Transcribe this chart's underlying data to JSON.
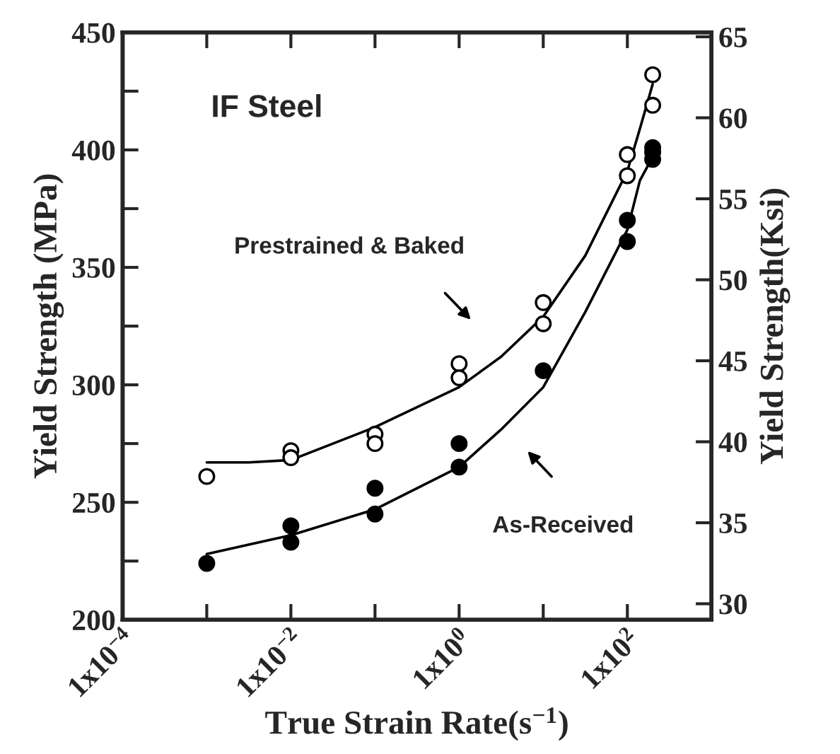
{
  "chart_data": {
    "type": "scatter",
    "xlabel": "True Strain Rate(s$^{−1}$)",
    "ylabel": "Yield Strength (MPa)",
    "y2label": "Yield Strength(Ksi)",
    "log": "x",
    "xlim": [
      0.0001,
      1000
    ],
    "xticks": [
      {
        "value": 0.0001,
        "label": "1x10$^{−4}$"
      },
      {
        "value": 0.001,
        "label": null
      },
      {
        "value": 0.01,
        "label": "1x10$^{−2}$"
      },
      {
        "value": 0.1,
        "label": null
      },
      {
        "value": 1,
        "label": "1x10$^{0}$"
      },
      {
        "value": 10,
        "label": null
      },
      {
        "value": 100,
        "label": "1x10$^{2}$"
      },
      {
        "value": 1000,
        "label": null
      }
    ],
    "ylim": [
      200,
      450
    ],
    "yticks": [
      200,
      {
        "value": 225,
        "label": null
      },
      250,
      {
        "value": 275,
        "label": null
      },
      300,
      {
        "value": 325,
        "label": null
      },
      350,
      {
        "value": 375,
        "label": null
      },
      400,
      {
        "value": 425,
        "label": null
      },
      450
    ],
    "y2lim": [
      29.01,
      65.27
    ],
    "y2ticks": [
      30,
      35,
      40,
      45,
      50,
      55,
      60,
      65
    ],
    "grid": false,
    "legend": false,
    "annotations": [
      "IF Steel",
      "Prestrained & Baked",
      "As-Received"
    ],
    "series": [
      {
        "color": "#ffffff",
        "marker": "circle",
        "x": [
          0.001,
          0.01,
          0.01,
          0.1,
          0.1,
          1,
          1,
          10,
          10,
          100,
          100,
          200,
          200
        ],
        "values": [
          261,
          272,
          269,
          279,
          275,
          309,
          303,
          335,
          326,
          398,
          389,
          432,
          419
        ]
      },
      {
        "color": "#000000",
        "marker": "circle",
        "x": [
          0.001,
          0.01,
          0.01,
          0.1,
          0.1,
          1,
          1,
          10,
          100,
          100,
          200,
          200,
          200
        ],
        "values": [
          224,
          240,
          233,
          256,
          245,
          275,
          265,
          306,
          370,
          361,
          401,
          399,
          396
        ]
      },
      {
        "type": "line",
        "color": "#000000",
        "marker": "none",
        "line_style": "solid",
        "x": [
          0.001,
          0.00316,
          0.01,
          0.1,
          1,
          3.16,
          10,
          31.6,
          100,
          141,
          200
        ],
        "values": [
          267,
          267,
          268,
          282,
          299,
          312,
          329,
          355,
          391,
          409,
          428
        ]
      },
      {
        "type": "line",
        "color": "#000000",
        "marker": "none",
        "line_style": "solid",
        "x": [
          0.001,
          0.01,
          0.1,
          1,
          3.16,
          10,
          31.6,
          100,
          141,
          200
        ],
        "values": [
          228,
          236,
          247,
          265,
          281,
          299,
          331,
          366,
          387,
          397
        ]
      }
    ]
  }
}
